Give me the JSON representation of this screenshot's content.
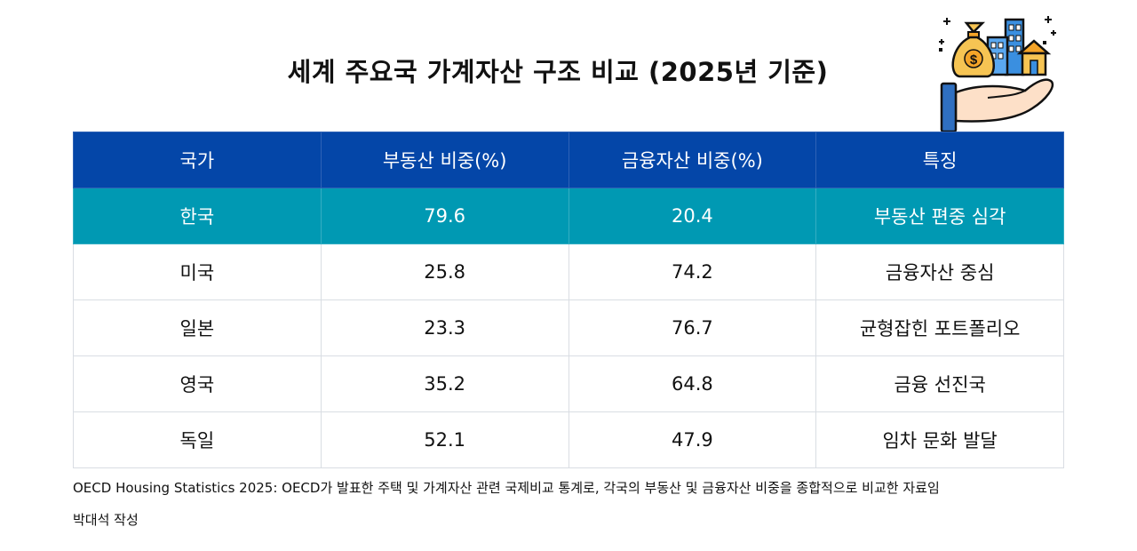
{
  "title": "세계 주요국 가계자산 구조 비교 (2025년 기준)",
  "illustration_icon": "hand-money-bag-buildings-icon",
  "colors": {
    "header_bg": "#0446a8",
    "highlight_row_bg": "#0099b3"
  },
  "table": {
    "headers": [
      "국가",
      "부동산 비중(%)",
      "금융자산 비중(%)",
      "특징"
    ],
    "rows": [
      [
        "한국",
        "79.6",
        "20.4",
        "부동산 편중 심각"
      ],
      [
        "미국",
        "25.8",
        "74.2",
        "금융자산 중심"
      ],
      [
        "일본",
        "23.3",
        "76.7",
        "균형잡힌 포트폴리오"
      ],
      [
        "영국",
        "35.2",
        "64.8",
        "금융 선진국"
      ],
      [
        "독일",
        "52.1",
        "47.9",
        "임차 문화 발달"
      ]
    ]
  },
  "source": "OECD Housing Statistics 2025: OECD가 발표한 주택 및 가계자산 관련 국제비교 통계로, 각국의 부동산 및 금융자산 비중을 종합적으로 비교한 자료임",
  "author": "박대석 작성"
}
